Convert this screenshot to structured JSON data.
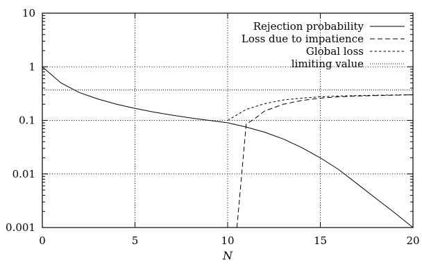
{
  "chart_data": {
    "type": "line",
    "xlabel": "N",
    "ylabel": "",
    "xlim": [
      0,
      20
    ],
    "ylim": [
      0.001,
      10
    ],
    "yscale": "log",
    "grid": true,
    "legend_position": "top-right",
    "x_ticks": [
      "0",
      "5",
      "10",
      "15",
      "20"
    ],
    "y_ticks": [
      "0.001",
      "0.01",
      "0.1",
      "1",
      "10"
    ],
    "series": [
      {
        "name": "Rejection probability",
        "style": "solid",
        "x": [
          0,
          1,
          2,
          3,
          4,
          5,
          6,
          7,
          8,
          9,
          10,
          11,
          12,
          13,
          14,
          15,
          16,
          17,
          18,
          19,
          20
        ],
        "y": [
          1.0,
          0.5,
          0.33,
          0.25,
          0.2,
          0.167,
          0.143,
          0.125,
          0.111,
          0.1,
          0.09,
          0.075,
          0.06,
          0.045,
          0.031,
          0.02,
          0.012,
          0.0065,
          0.0035,
          0.0019,
          0.001
        ]
      },
      {
        "name": "Loss due to impatience",
        "style": "dashed",
        "x": [
          10.5,
          11,
          11.5,
          12,
          13,
          14,
          15,
          16,
          17,
          18,
          19,
          20
        ],
        "y": [
          0.001,
          0.085,
          0.11,
          0.15,
          0.2,
          0.235,
          0.26,
          0.275,
          0.285,
          0.29,
          0.295,
          0.3
        ]
      },
      {
        "name": "Global loss",
        "style": "short-dashed",
        "x": [
          10,
          11,
          12,
          13,
          14,
          15,
          16,
          17,
          18,
          19,
          20
        ],
        "y": [
          0.1,
          0.16,
          0.205,
          0.24,
          0.26,
          0.275,
          0.285,
          0.29,
          0.295,
          0.298,
          0.3
        ]
      },
      {
        "name": "limiting value",
        "style": "dotted",
        "x": [
          0,
          20
        ],
        "y": [
          0.368,
          0.368
        ]
      }
    ]
  }
}
